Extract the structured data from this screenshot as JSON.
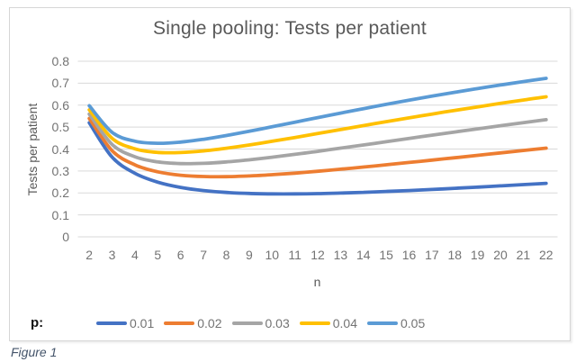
{
  "figure_caption": "Figure 1",
  "colors": {
    "text_gray": "#595959",
    "tick_gray": "#737373",
    "gridline": "#d9d9d9",
    "caption_blue": "#44546a"
  },
  "chart_data": {
    "type": "line",
    "title": "Single pooling: Tests per patient",
    "xlabel": "n",
    "ylabel": "Tests per patient",
    "x": [
      2,
      3,
      4,
      5,
      6,
      7,
      8,
      9,
      10,
      11,
      12,
      13,
      14,
      15,
      16,
      17,
      18,
      19,
      20,
      21,
      22
    ],
    "ylim": [
      0,
      0.8
    ],
    "y_ticks": [
      "0",
      "0.1",
      "0.2",
      "0.3",
      "0.4",
      "0.5",
      "0.6",
      "0.7",
      "0.8"
    ],
    "grid": "horizontal",
    "legend": {
      "prefix": "p:",
      "position": "bottom"
    },
    "series": [
      {
        "name": "0.01",
        "color": "#4472C4",
        "values": [
          0.5199,
          0.363,
          0.2894,
          0.249,
          0.2252,
          0.2108,
          0.2023,
          0.1976,
          0.1956,
          0.1956,
          0.1969,
          0.1994,
          0.2027,
          0.2066,
          0.211,
          0.2159,
          0.221,
          0.2265,
          0.2321,
          0.2379,
          0.2438
        ]
      },
      {
        "name": "0.02",
        "color": "#ED7D31",
        "values": [
          0.5396,
          0.3921,
          0.3276,
          0.2961,
          0.2808,
          0.2747,
          0.2742,
          0.2774,
          0.2829,
          0.2902,
          0.2986,
          0.3079,
          0.3178,
          0.3281,
          0.3387,
          0.3495,
          0.3604,
          0.3714,
          0.3824,
          0.3934,
          0.4043
        ]
      },
      {
        "name": "0.03",
        "color": "#A5A5A5",
        "values": [
          0.5591,
          0.4207,
          0.3647,
          0.3413,
          0.3337,
          0.3349,
          0.3413,
          0.3509,
          0.3626,
          0.3756,
          0.3895,
          0.4039,
          0.4186,
          0.4334,
          0.4482,
          0.463,
          0.4776,
          0.492,
          0.5062,
          0.5201,
          0.5338
        ]
      },
      {
        "name": "0.04",
        "color": "#FFC000",
        "values": [
          0.5784,
          0.4486,
          0.4007,
          0.3846,
          0.3839,
          0.3914,
          0.4036,
          0.4186,
          0.4352,
          0.4527,
          0.4706,
          0.4887,
          0.5068,
          0.5246,
          0.5421,
          0.5592,
          0.576,
          0.5922,
          0.608,
          0.6233,
          0.6381
        ]
      },
      {
        "name": "0.05",
        "color": "#5B9BD5",
        "values": [
          0.5975,
          0.476,
          0.4355,
          0.4262,
          0.4316,
          0.4445,
          0.4616,
          0.4809,
          0.5013,
          0.5221,
          0.543,
          0.5636,
          0.5838,
          0.6034,
          0.6224,
          0.6407,
          0.6583,
          0.6753,
          0.6915,
          0.7071,
          0.7219
        ]
      }
    ]
  }
}
